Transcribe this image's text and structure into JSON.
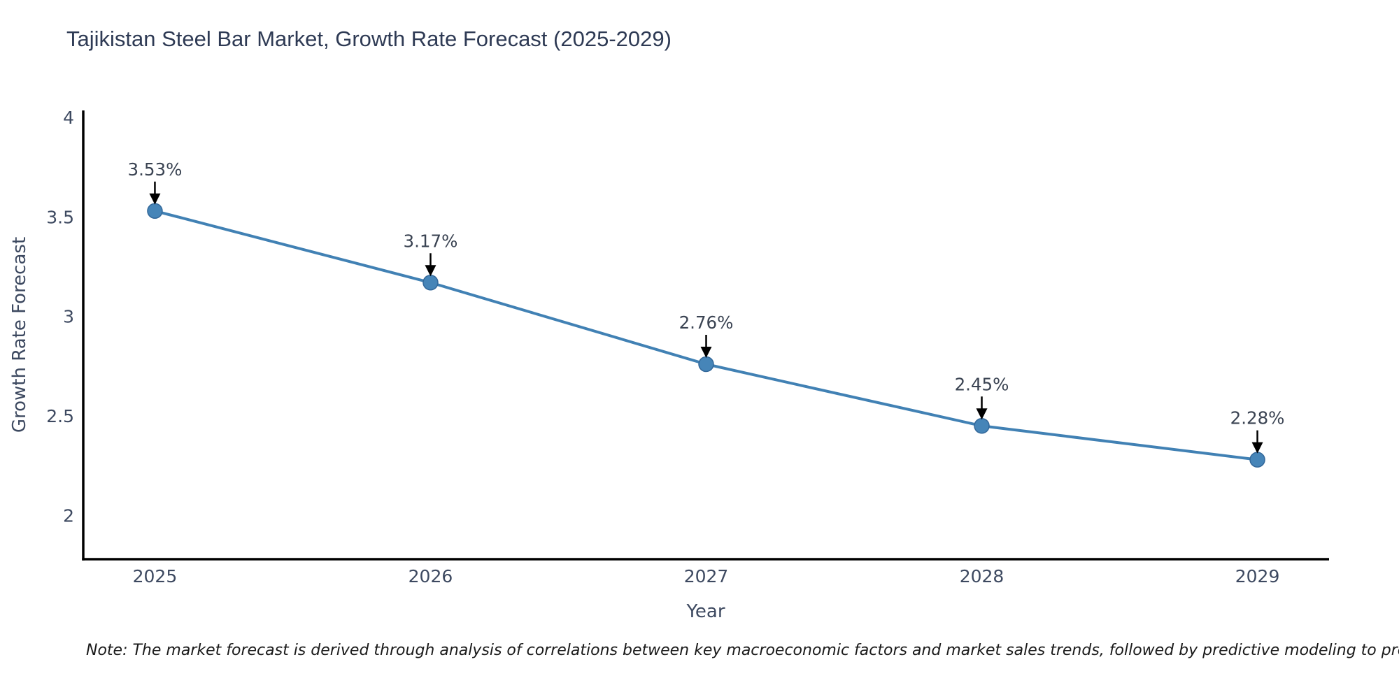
{
  "chart_data": {
    "type": "line",
    "title": "Tajikistan Steel Bar Market, Growth Rate Forecast (2025-2029)",
    "xlabel": "Year",
    "ylabel": "Growth Rate Forecast",
    "categories": [
      "2025",
      "2026",
      "2027",
      "2028",
      "2029"
    ],
    "x": [
      2025,
      2026,
      2027,
      2028,
      2029
    ],
    "values": [
      3.53,
      3.17,
      2.76,
      2.45,
      2.28
    ],
    "point_labels": [
      "3.53%",
      "3.17%",
      "2.76%",
      "2.45%",
      "2.28%"
    ],
    "yticks": [
      2,
      2.5,
      3,
      3.5,
      4
    ],
    "ytick_labels": [
      "2",
      "2.5",
      "3",
      "3.5",
      "4"
    ],
    "xlim": [
      2024.74,
      2029.26
    ],
    "ylim": [
      1.78,
      4.035
    ],
    "grid": false,
    "legend": "none",
    "annotation_style": "value label with down arrow to marker",
    "note": "Note: The market forecast is derived through analysis of correlations between key macroeconomic factors and market sales trends, followed by predictive modeling to project future sales",
    "colors": {
      "line": "#4181b4",
      "marker_fill": "#4685b8",
      "marker_edge": "#33689a",
      "axis_spine": "#000000",
      "tick_text": "#3d4960",
      "annotation_text": "#3a4352",
      "arrow": "#000000",
      "title_text": "#2e3a54",
      "note_text": "#1a1a1a",
      "background": "#ffffff"
    }
  }
}
